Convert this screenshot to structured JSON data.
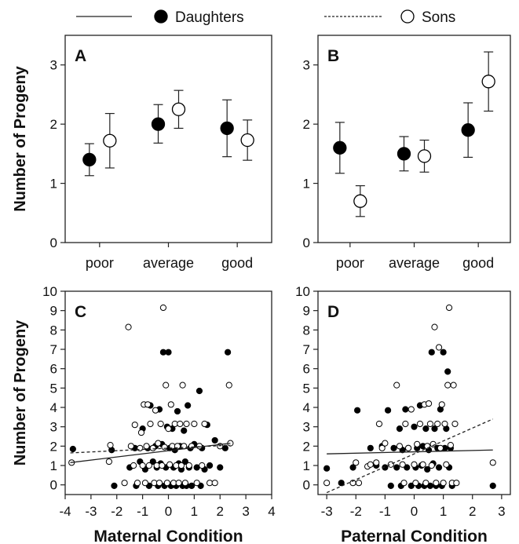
{
  "legend": {
    "daughters_label": "Daughters",
    "sons_label": "Sons",
    "placement": "top"
  },
  "colors": {
    "daughters": "#000000",
    "sons": "#ffffff",
    "axis": "#222222"
  },
  "chart_data": [
    {
      "panel": "A",
      "type": "scatter",
      "title": "A",
      "ylabel": "Number of Progeny",
      "categories": [
        "poor",
        "average",
        "good"
      ],
      "yticks": [
        "0",
        "1",
        "2",
        "3"
      ],
      "ylim": [
        0,
        3.5
      ],
      "series": [
        {
          "name": "Daughters",
          "values": [
            1.4,
            2.0,
            1.93
          ],
          "err_low": [
            1.13,
            1.68,
            1.45
          ],
          "err_high": [
            1.67,
            2.33,
            2.41
          ]
        },
        {
          "name": "Sons",
          "values": [
            1.72,
            2.25,
            1.73
          ],
          "err_low": [
            1.26,
            1.93,
            1.39
          ],
          "err_high": [
            2.18,
            2.57,
            2.07
          ]
        }
      ]
    },
    {
      "panel": "B",
      "type": "scatter",
      "title": "B",
      "ylabel": "",
      "categories": [
        "poor",
        "average",
        "good"
      ],
      "yticks": [
        "0",
        "1",
        "2",
        "3"
      ],
      "ylim": [
        0,
        3.5
      ],
      "series": [
        {
          "name": "Daughters",
          "values": [
            1.6,
            1.5,
            1.9
          ],
          "err_low": [
            1.17,
            1.21,
            1.44
          ],
          "err_high": [
            2.03,
            1.79,
            2.36
          ]
        },
        {
          "name": "Sons",
          "values": [
            0.7,
            1.46,
            2.72
          ],
          "err_low": [
            0.44,
            1.19,
            2.22
          ],
          "err_high": [
            0.96,
            1.73,
            3.22
          ]
        }
      ]
    },
    {
      "panel": "C",
      "type": "scatter",
      "title": "C",
      "xlabel": "Maternal Condition",
      "ylabel": "Number of Progeny",
      "xticks": [
        "-4",
        "-3",
        "-2",
        "-1",
        "0",
        "1",
        "2",
        "3",
        "4"
      ],
      "yticks": [
        "0",
        "1",
        "2",
        "3",
        "4",
        "5",
        "6",
        "7",
        "8",
        "9",
        "10"
      ],
      "xlim": [
        -4,
        4
      ],
      "ylim": [
        -0.5,
        10
      ],
      "fit_lines": {
        "Daughters": {
          "x": [
            -3.8,
            2.4
          ],
          "y": [
            1.15,
            2.15
          ]
        },
        "Sons": {
          "x": [
            -3.8,
            2.4
          ],
          "y": [
            1.65,
            2.05
          ]
        }
      },
      "series": [
        {
          "name": "Daughters",
          "points": [
            [
              -3.7,
              1.85
            ],
            [
              -2.2,
              1.8
            ],
            [
              -2.1,
              -0.05
            ],
            [
              -1.5,
              0.9
            ],
            [
              -1.3,
              1.9
            ],
            [
              -1.25,
              -0.05
            ],
            [
              -1.1,
              1.2
            ],
            [
              -1.0,
              2.9
            ],
            [
              -0.9,
              0.8
            ],
            [
              -0.8,
              1.9
            ],
            [
              -0.75,
              -0.05
            ],
            [
              -0.7,
              4.1
            ],
            [
              -0.6,
              1.2
            ],
            [
              -0.5,
              2.0
            ],
            [
              -0.45,
              0.9
            ],
            [
              -0.4,
              -0.05
            ],
            [
              -0.35,
              3.9
            ],
            [
              -0.3,
              1.1
            ],
            [
              -0.25,
              2.1
            ],
            [
              -0.2,
              6.85
            ],
            [
              -0.15,
              -0.05
            ],
            [
              -0.1,
              0.9
            ],
            [
              -0.05,
              3.0
            ],
            [
              0.0,
              6.85
            ],
            [
              0.05,
              1.9
            ],
            [
              0.1,
              -0.05
            ],
            [
              0.15,
              2.9
            ],
            [
              0.2,
              0.9
            ],
            [
              0.25,
              1.8
            ],
            [
              0.3,
              -0.05
            ],
            [
              0.35,
              3.8
            ],
            [
              0.4,
              1.1
            ],
            [
              0.45,
              2.0
            ],
            [
              0.5,
              0.8
            ],
            [
              0.55,
              -0.05
            ],
            [
              0.6,
              2.8
            ],
            [
              0.65,
              1.2
            ],
            [
              0.7,
              -0.05
            ],
            [
              0.75,
              4.1
            ],
            [
              0.8,
              0.9
            ],
            [
              0.85,
              1.9
            ],
            [
              0.9,
              -0.05
            ],
            [
              1.0,
              2.1
            ],
            [
              1.1,
              0.9
            ],
            [
              1.2,
              4.85
            ],
            [
              1.25,
              -0.05
            ],
            [
              1.3,
              1.9
            ],
            [
              1.4,
              0.8
            ],
            [
              1.5,
              3.1
            ],
            [
              1.6,
              1.0
            ],
            [
              1.8,
              2.3
            ],
            [
              2.0,
              0.9
            ],
            [
              2.2,
              1.9
            ],
            [
              2.3,
              6.85
            ]
          ]
        },
        {
          "name": "Sons",
          "points": [
            [
              -3.75,
              1.15
            ],
            [
              -2.3,
              1.2
            ],
            [
              -2.25,
              2.05
            ],
            [
              -1.7,
              0.1
            ],
            [
              -1.55,
              8.15
            ],
            [
              -1.45,
              2.0
            ],
            [
              -1.35,
              1.0
            ],
            [
              -1.3,
              3.1
            ],
            [
              -1.2,
              0.1
            ],
            [
              -1.1,
              1.9
            ],
            [
              -1.05,
              2.7
            ],
            [
              -1.0,
              1.0
            ],
            [
              -0.95,
              4.15
            ],
            [
              -0.9,
              0.1
            ],
            [
              -0.85,
              2.0
            ],
            [
              -0.8,
              4.15
            ],
            [
              -0.75,
              1.0
            ],
            [
              -0.7,
              3.15
            ],
            [
              -0.6,
              1.9
            ],
            [
              -0.55,
              0.1
            ],
            [
              -0.5,
              3.85
            ],
            [
              -0.45,
              1.0
            ],
            [
              -0.4,
              2.15
            ],
            [
              -0.35,
              0.1
            ],
            [
              -0.3,
              3.15
            ],
            [
              -0.25,
              1.0
            ],
            [
              -0.2,
              9.15
            ],
            [
              -0.15,
              1.95
            ],
            [
              -0.1,
              5.15
            ],
            [
              -0.05,
              0.1
            ],
            [
              0.0,
              2.9
            ],
            [
              0.05,
              1.05
            ],
            [
              0.1,
              4.15
            ],
            [
              0.15,
              2.0
            ],
            [
              0.2,
              0.1
            ],
            [
              0.25,
              3.15
            ],
            [
              0.3,
              1.0
            ],
            [
              0.35,
              2.0
            ],
            [
              0.4,
              0.1
            ],
            [
              0.45,
              3.15
            ],
            [
              0.5,
              1.0
            ],
            [
              0.55,
              5.15
            ],
            [
              0.6,
              2.0
            ],
            [
              0.65,
              0.1
            ],
            [
              0.7,
              3.15
            ],
            [
              0.8,
              1.0
            ],
            [
              0.9,
              2.0
            ],
            [
              1.0,
              3.15
            ],
            [
              1.1,
              0.1
            ],
            [
              1.2,
              2.0
            ],
            [
              1.3,
              1.0
            ],
            [
              1.4,
              3.15
            ],
            [
              1.6,
              0.1
            ],
            [
              1.8,
              0.1
            ],
            [
              2.0,
              2.0
            ],
            [
              2.35,
              5.15
            ],
            [
              2.4,
              2.15
            ]
          ]
        }
      ]
    },
    {
      "panel": "D",
      "type": "scatter",
      "title": "D",
      "xlabel": "Paternal Condition",
      "ylabel": "",
      "xticks": [
        "-3",
        "-2",
        "-1",
        "0",
        "1",
        "2",
        "3"
      ],
      "yticks": [
        "0",
        "1",
        "2",
        "3",
        "4",
        "5",
        "6",
        "7",
        "8",
        "9",
        "10"
      ],
      "xlim": [
        -3.3,
        3.3
      ],
      "ylim": [
        -0.5,
        10
      ],
      "fit_lines": {
        "Daughters": {
          "x": [
            -3.0,
            2.7
          ],
          "y": [
            1.6,
            1.8
          ]
        },
        "Sons": {
          "x": [
            -3.0,
            2.7
          ],
          "y": [
            -0.4,
            3.4
          ]
        }
      },
      "series": [
        {
          "name": "Daughters",
          "points": [
            [
              -3.0,
              0.85
            ],
            [
              -2.5,
              0.1
            ],
            [
              -2.1,
              0.9
            ],
            [
              -1.95,
              3.85
            ],
            [
              -1.5,
              1.9
            ],
            [
              -1.3,
              1.0
            ],
            [
              -1.1,
              2.0
            ],
            [
              -1.0,
              0.9
            ],
            [
              -0.9,
              3.85
            ],
            [
              -0.8,
              -0.05
            ],
            [
              -0.7,
              1.9
            ],
            [
              -0.6,
              0.9
            ],
            [
              -0.5,
              2.9
            ],
            [
              -0.45,
              -0.05
            ],
            [
              -0.4,
              1.8
            ],
            [
              -0.3,
              3.9
            ],
            [
              -0.25,
              0.9
            ],
            [
              -0.2,
              1.9
            ],
            [
              -0.1,
              -0.05
            ],
            [
              0.0,
              3.0
            ],
            [
              0.05,
              0.9
            ],
            [
              0.1,
              1.9
            ],
            [
              0.15,
              -0.05
            ],
            [
              0.2,
              4.1
            ],
            [
              0.25,
              1.0
            ],
            [
              0.3,
              2.0
            ],
            [
              0.35,
              -0.05
            ],
            [
              0.4,
              2.9
            ],
            [
              0.45,
              0.8
            ],
            [
              0.5,
              1.8
            ],
            [
              0.55,
              -0.05
            ],
            [
              0.6,
              6.85
            ],
            [
              0.65,
              1.1
            ],
            [
              0.7,
              2.9
            ],
            [
              0.75,
              -0.05
            ],
            [
              0.8,
              1.9
            ],
            [
              0.85,
              0.9
            ],
            [
              0.9,
              3.9
            ],
            [
              0.95,
              -0.05
            ],
            [
              1.0,
              6.85
            ],
            [
              1.05,
              1.9
            ],
            [
              1.1,
              2.9
            ],
            [
              1.15,
              5.85
            ],
            [
              1.2,
              0.9
            ],
            [
              1.25,
              1.9
            ],
            [
              1.3,
              -0.05
            ],
            [
              2.7,
              -0.05
            ]
          ]
        },
        {
          "name": "Sons",
          "points": [
            [
              -3.0,
              0.1
            ],
            [
              -2.1,
              0.1
            ],
            [
              -2.0,
              1.15
            ],
            [
              -1.9,
              0.1
            ],
            [
              -1.6,
              0.95
            ],
            [
              -1.5,
              1.05
            ],
            [
              -1.3,
              1.15
            ],
            [
              -1.2,
              3.15
            ],
            [
              -1.1,
              1.9
            ],
            [
              -1.0,
              2.15
            ],
            [
              -0.8,
              1.05
            ],
            [
              -0.6,
              5.15
            ],
            [
              -0.5,
              2.0
            ],
            [
              -0.4,
              1.05
            ],
            [
              -0.35,
              0.1
            ],
            [
              -0.3,
              3.15
            ],
            [
              -0.2,
              1.9
            ],
            [
              -0.1,
              3.9
            ],
            [
              0.0,
              1.05
            ],
            [
              0.05,
              0.1
            ],
            [
              0.1,
              2.1
            ],
            [
              0.2,
              3.15
            ],
            [
              0.3,
              1.05
            ],
            [
              0.35,
              4.15
            ],
            [
              0.4,
              0.1
            ],
            [
              0.45,
              2.0
            ],
            [
              0.5,
              4.2
            ],
            [
              0.55,
              3.15
            ],
            [
              0.6,
              1.0
            ],
            [
              0.65,
              2.1
            ],
            [
              0.7,
              8.15
            ],
            [
              0.75,
              0.1
            ],
            [
              0.8,
              3.15
            ],
            [
              0.85,
              7.1
            ],
            [
              0.9,
              1.9
            ],
            [
              0.95,
              4.15
            ],
            [
              1.0,
              0.1
            ],
            [
              1.05,
              3.15
            ],
            [
              1.1,
              1.05
            ],
            [
              1.15,
              5.15
            ],
            [
              1.2,
              9.15
            ],
            [
              1.25,
              2.05
            ],
            [
              1.3,
              0.1
            ],
            [
              1.35,
              5.15
            ],
            [
              1.4,
              3.15
            ],
            [
              1.45,
              0.1
            ],
            [
              2.7,
              1.15
            ]
          ]
        }
      ]
    }
  ]
}
